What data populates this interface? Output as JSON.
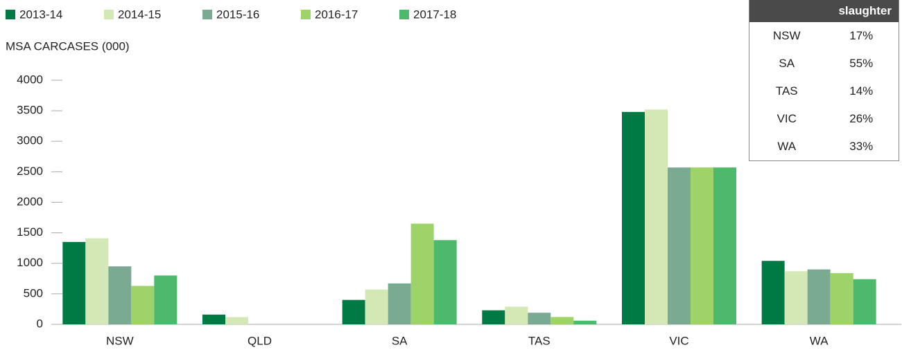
{
  "chart_data": {
    "type": "bar",
    "y_label": "MSA CARCASES (000)",
    "categories": [
      "NSW",
      "QLD",
      "SA",
      "TAS",
      "VIC",
      "WA"
    ],
    "series": [
      {
        "name": "2013-14",
        "color": "#007a45",
        "values": [
          1350,
          160,
          400,
          230,
          3480,
          1040
        ]
      },
      {
        "name": "2014-15",
        "color": "#d4e8b6",
        "values": [
          1410,
          120,
          570,
          290,
          3520,
          870
        ]
      },
      {
        "name": "2015-16",
        "color": "#7aab92",
        "values": [
          950,
          0,
          670,
          190,
          2570,
          900
        ]
      },
      {
        "name": "2016-17",
        "color": "#9ed36a",
        "values": [
          630,
          0,
          1650,
          120,
          2570,
          840
        ]
      },
      {
        "name": "2017-18",
        "color": "#4cb96c",
        "values": [
          800,
          0,
          1380,
          60,
          2570,
          740
        ]
      }
    ],
    "ylim": [
      0,
      4000
    ],
    "yticks": [
      0,
      500,
      1000,
      1500,
      2000,
      2500,
      3000,
      3500,
      4000
    ],
    "grid": false
  },
  "table": {
    "header": "slaughter",
    "rows": [
      [
        "NSW",
        "17%"
      ],
      [
        "SA",
        "55%"
      ],
      [
        "TAS",
        "14%"
      ],
      [
        "VIC",
        "26%"
      ],
      [
        "WA",
        "33%"
      ]
    ]
  }
}
